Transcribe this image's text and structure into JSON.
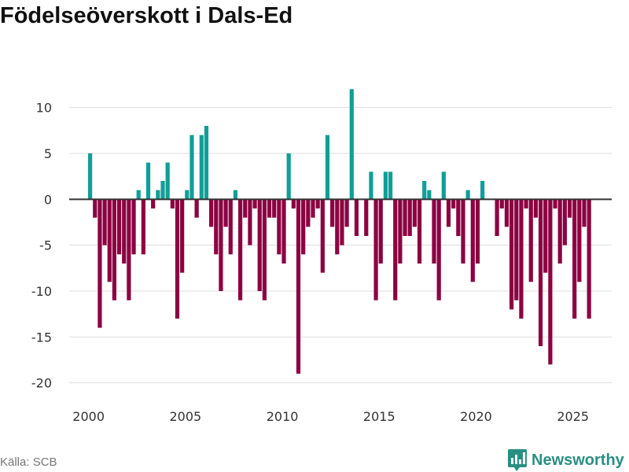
{
  "chart_data": {
    "type": "bar",
    "title": "Födelseöverskott i Dals-Ed",
    "xlabel": "",
    "ylabel": "",
    "ylim": [
      -22,
      14
    ],
    "xlim": [
      1999,
      2027
    ],
    "x_ticks": [
      2000,
      2005,
      2010,
      2015,
      2020,
      2025
    ],
    "y_ticks": [
      10,
      5,
      0,
      -5,
      -10,
      -15,
      -20
    ],
    "colors": {
      "positive": "#109e98",
      "negative": "#8c0042"
    },
    "series": [
      {
        "name": "Födelseöverskott",
        "points": [
          [
            2000.08,
            5
          ],
          [
            2000.33,
            -2
          ],
          [
            2000.58,
            -14
          ],
          [
            2000.83,
            -5
          ],
          [
            2001.08,
            -9
          ],
          [
            2001.33,
            -11
          ],
          [
            2001.58,
            -6
          ],
          [
            2001.83,
            -7
          ],
          [
            2002.08,
            -11
          ],
          [
            2002.33,
            -6
          ],
          [
            2002.58,
            1
          ],
          [
            2002.83,
            -6
          ],
          [
            2003.08,
            4
          ],
          [
            2003.33,
            -1
          ],
          [
            2003.58,
            1
          ],
          [
            2003.83,
            2
          ],
          [
            2004.08,
            4
          ],
          [
            2004.33,
            -1
          ],
          [
            2004.58,
            -13
          ],
          [
            2004.83,
            -8
          ],
          [
            2005.08,
            1
          ],
          [
            2005.33,
            7
          ],
          [
            2005.58,
            -2
          ],
          [
            2005.83,
            7
          ],
          [
            2006.08,
            8
          ],
          [
            2006.33,
            -3
          ],
          [
            2006.58,
            -6
          ],
          [
            2006.83,
            -10
          ],
          [
            2007.08,
            -3
          ],
          [
            2007.33,
            -6
          ],
          [
            2007.58,
            1
          ],
          [
            2007.83,
            -11
          ],
          [
            2008.08,
            -2
          ],
          [
            2008.33,
            -5
          ],
          [
            2008.58,
            -1
          ],
          [
            2008.83,
            -10
          ],
          [
            2009.08,
            -11
          ],
          [
            2009.33,
            -2
          ],
          [
            2009.58,
            -2
          ],
          [
            2009.83,
            -6
          ],
          [
            2010.08,
            -7
          ],
          [
            2010.33,
            5
          ],
          [
            2010.58,
            -1
          ],
          [
            2010.83,
            -19
          ],
          [
            2011.08,
            -6
          ],
          [
            2011.33,
            -3
          ],
          [
            2011.58,
            -2
          ],
          [
            2011.83,
            -1
          ],
          [
            2012.08,
            -8
          ],
          [
            2012.33,
            7
          ],
          [
            2012.58,
            -3
          ],
          [
            2012.83,
            -6
          ],
          [
            2013.08,
            -5
          ],
          [
            2013.33,
            -3
          ],
          [
            2013.58,
            12
          ],
          [
            2013.83,
            -4
          ],
          [
            2014.33,
            -4
          ],
          [
            2014.58,
            3
          ],
          [
            2014.83,
            -11
          ],
          [
            2015.08,
            -7
          ],
          [
            2015.33,
            3
          ],
          [
            2015.58,
            3
          ],
          [
            2015.83,
            -11
          ],
          [
            2016.08,
            -7
          ],
          [
            2016.33,
            -4
          ],
          [
            2016.58,
            -4
          ],
          [
            2016.83,
            -3
          ],
          [
            2017.08,
            -7
          ],
          [
            2017.33,
            2
          ],
          [
            2017.58,
            1
          ],
          [
            2017.83,
            -7
          ],
          [
            2018.08,
            -11
          ],
          [
            2018.33,
            3
          ],
          [
            2018.58,
            -3
          ],
          [
            2018.83,
            -1
          ],
          [
            2019.08,
            -4
          ],
          [
            2019.33,
            -7
          ],
          [
            2019.58,
            1
          ],
          [
            2019.83,
            -9
          ],
          [
            2020.08,
            -7
          ],
          [
            2020.33,
            2
          ],
          [
            2021.08,
            -4
          ],
          [
            2021.33,
            -1
          ],
          [
            2021.58,
            -3
          ],
          [
            2021.83,
            -12
          ],
          [
            2022.08,
            -11
          ],
          [
            2022.33,
            -13
          ],
          [
            2022.58,
            -1
          ],
          [
            2022.83,
            -9
          ],
          [
            2023.08,
            -2
          ],
          [
            2023.33,
            -16
          ],
          [
            2023.58,
            -8
          ],
          [
            2023.83,
            -18
          ],
          [
            2024.08,
            -1
          ],
          [
            2024.33,
            -7
          ],
          [
            2024.58,
            -5
          ],
          [
            2024.83,
            -2
          ],
          [
            2025.08,
            -13
          ],
          [
            2025.33,
            -9
          ],
          [
            2025.58,
            -3
          ],
          [
            2025.83,
            -13
          ]
        ]
      }
    ]
  },
  "footer": {
    "source": "Källa: SCB",
    "brand": "Newsworthy"
  },
  "colors": {
    "brand": "#2a8f83",
    "grid": "#dddddd",
    "zero_line": "#333333"
  }
}
